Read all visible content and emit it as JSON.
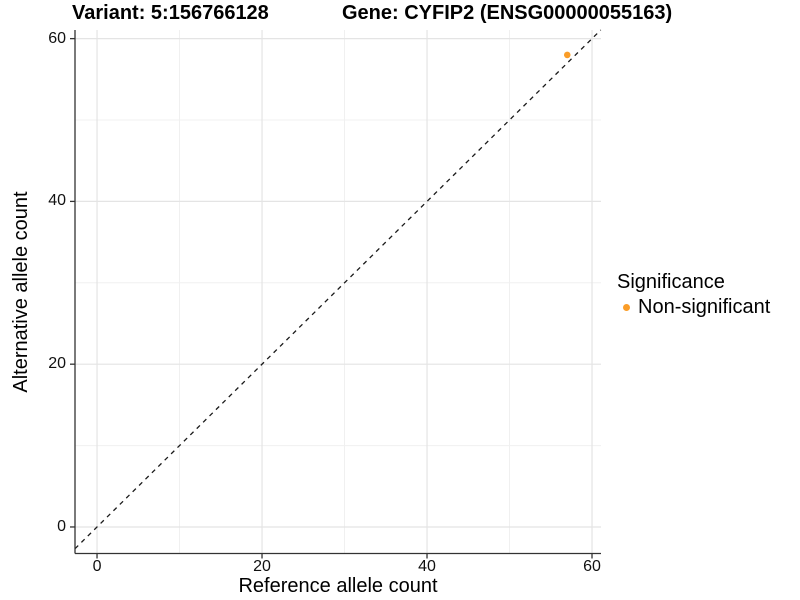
{
  "header": {
    "title_left": "Variant: 5:156766128",
    "title_right": "Gene: CYFIP2 (ENSG00000055163)"
  },
  "chart_data": {
    "type": "scatter",
    "xlabel": "Reference allele count",
    "ylabel": "Alternative allele count",
    "xlim": [
      -2.67,
      61.09
    ],
    "ylim": [
      -3.26,
      61.06
    ],
    "x_major_ticks": [
      0,
      20,
      40,
      60
    ],
    "y_major_ticks": [
      0,
      20,
      40,
      60
    ],
    "x_minor_ticks": [
      10,
      30,
      50
    ],
    "y_minor_ticks": [
      10,
      30,
      50
    ],
    "grid": true,
    "identity_line": {
      "slope": 1,
      "intercept": 0,
      "style": "dashed"
    },
    "series": [
      {
        "name": "Non-significant",
        "color": "#FA9D28",
        "points": [
          {
            "x": 57,
            "y": 58
          }
        ]
      }
    ],
    "legend": {
      "title": "Significance",
      "position": "right",
      "entries": [
        {
          "label": "Non-significant",
          "color": "#FA9D28"
        }
      ]
    }
  },
  "colors": {
    "grid_major": "#e4e4e4",
    "grid_minor": "#f0f0f0",
    "axis_line": "#333333",
    "identity_line": "#1a1a1a",
    "point": "#FA9D28",
    "tick_text": "#111111"
  }
}
